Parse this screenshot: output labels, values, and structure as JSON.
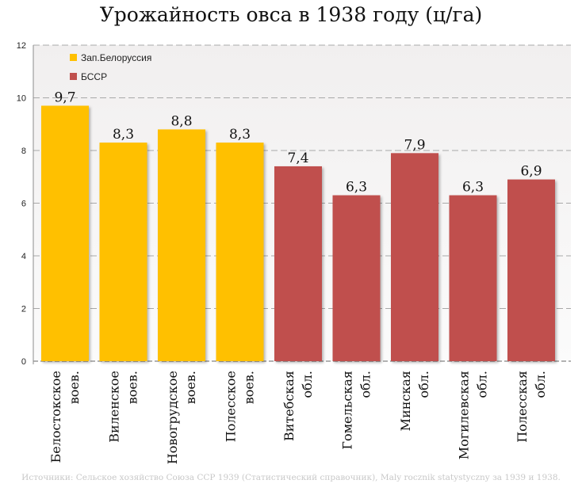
{
  "chart_data": {
    "type": "bar",
    "title": "Урожайность овса в 1938 году (ц/га)",
    "categories": [
      "Белостокское воев.",
      "Виленское воев.",
      "Новогрудское воев.",
      "Полесское воев.",
      "Витебская обл.",
      "Гомельская обл.",
      "Минская обл.",
      "Могилевская обл.",
      "Полесская обл."
    ],
    "category_lines": [
      [
        "Белостокское",
        "воев."
      ],
      [
        "Виленское",
        "воев."
      ],
      [
        "Новогрудское",
        "воев."
      ],
      [
        "Полесское",
        "воев."
      ],
      [
        "Витебская",
        "обл."
      ],
      [
        "Гомельская",
        "обл."
      ],
      [
        "Минская",
        "обл."
      ],
      [
        "Могилевская",
        "обл."
      ],
      [
        "Полесская",
        "обл."
      ]
    ],
    "values": [
      9.7,
      8.3,
      8.8,
      8.3,
      7.4,
      6.3,
      7.9,
      6.3,
      6.9
    ],
    "value_labels": [
      "9,7",
      "8,3",
      "8,8",
      "8,3",
      "7,4",
      "6,3",
      "7,9",
      "6,3",
      "6,9"
    ],
    "series": [
      {
        "name": "Зап.Белоруссия",
        "color": "#FFC000",
        "indices": [
          0,
          1,
          2,
          3
        ]
      },
      {
        "name": "БССР",
        "color": "#C0504D",
        "indices": [
          4,
          5,
          6,
          7,
          8
        ]
      }
    ],
    "ylim": [
      0,
      12
    ],
    "yticks": [
      0,
      2,
      4,
      6,
      8,
      10,
      12
    ],
    "grid": true,
    "legend_position": "top-left",
    "xlabel": "",
    "ylabel": "",
    "source": "Источники: Сельское хозяйство Союза ССР 1939 (Статистический справочник), Maly rocznik statystyczny за 1939 и 1938."
  }
}
